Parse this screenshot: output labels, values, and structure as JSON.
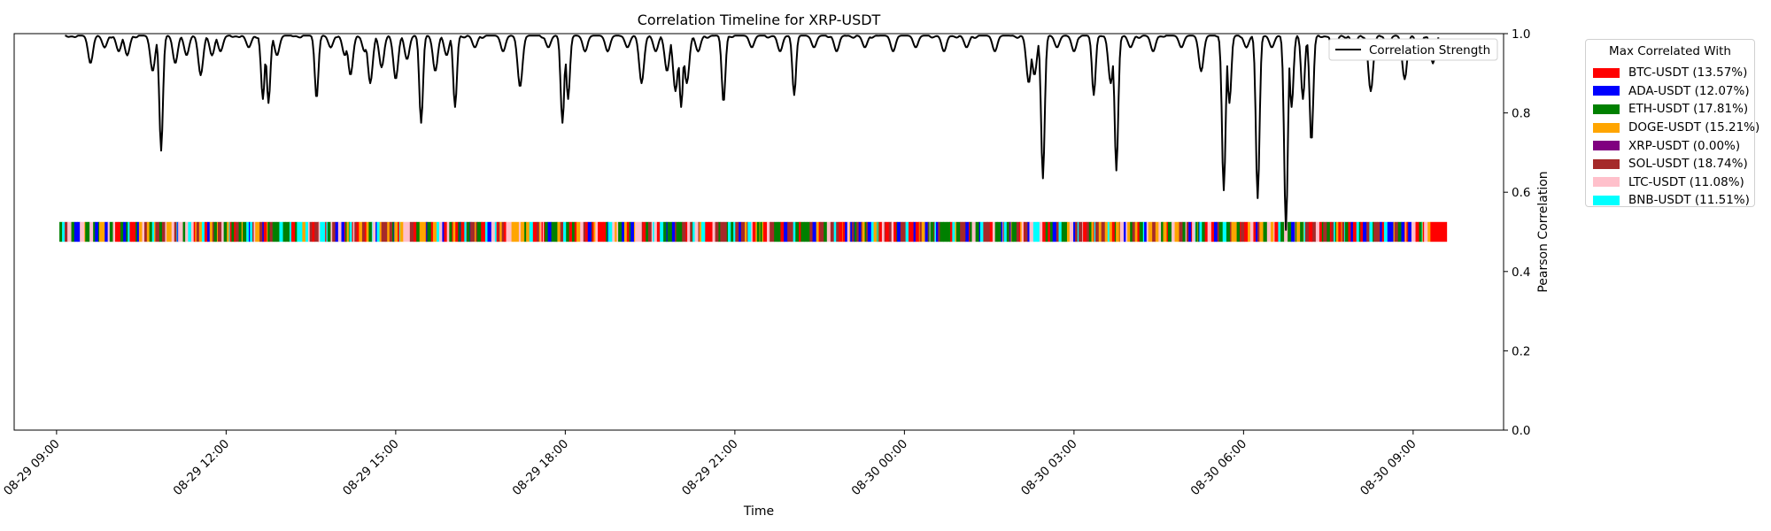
{
  "chart_data": {
    "type": "line",
    "title": "Correlation Timeline for XRP-USDT",
    "xlabel": "Time",
    "ylabel": "Pearson Correlation",
    "ylim": [
      0,
      1
    ],
    "yticks": [
      "0.0",
      "0.2",
      "0.4",
      "0.6",
      "0.8",
      "1.0"
    ],
    "xlim_hours": [
      -0.75,
      25.6
    ],
    "xticks": [
      "08-29 09:00",
      "08-29 12:00",
      "08-29 15:00",
      "08-29 18:00",
      "08-29 21:00",
      "08-30 00:00",
      "08-30 03:00",
      "08-30 06:00",
      "08-30 09:00"
    ],
    "grid": false,
    "series": [
      {
        "name": "Correlation Strength",
        "color": "#000000",
        "baseline": 0.995,
        "dips": [
          [
            0.6,
            0.93
          ],
          [
            0.85,
            0.97
          ],
          [
            1.1,
            0.96
          ],
          [
            1.25,
            0.95
          ],
          [
            1.7,
            0.91
          ],
          [
            1.85,
            0.71
          ],
          [
            2.1,
            0.93
          ],
          [
            2.3,
            0.95
          ],
          [
            2.55,
            0.9
          ],
          [
            2.75,
            0.95
          ],
          [
            2.9,
            0.96
          ],
          [
            3.4,
            0.97
          ],
          [
            3.65,
            0.84
          ],
          [
            3.75,
            0.83
          ],
          [
            3.9,
            0.95
          ],
          [
            4.6,
            0.84
          ],
          [
            4.85,
            0.97
          ],
          [
            5.1,
            0.95
          ],
          [
            5.2,
            0.9
          ],
          [
            5.45,
            0.96
          ],
          [
            5.55,
            0.88
          ],
          [
            5.75,
            0.92
          ],
          [
            6.0,
            0.89
          ],
          [
            6.2,
            0.94
          ],
          [
            6.45,
            0.78
          ],
          [
            6.7,
            0.91
          ],
          [
            6.9,
            0.95
          ],
          [
            7.05,
            0.82
          ],
          [
            7.4,
            0.97
          ],
          [
            7.9,
            0.96
          ],
          [
            8.2,
            0.87
          ],
          [
            8.7,
            0.97
          ],
          [
            8.95,
            0.78
          ],
          [
            9.05,
            0.84
          ],
          [
            9.35,
            0.96
          ],
          [
            9.75,
            0.96
          ],
          [
            10.1,
            0.97
          ],
          [
            10.35,
            0.88
          ],
          [
            10.6,
            0.96
          ],
          [
            10.8,
            0.91
          ],
          [
            10.95,
            0.86
          ],
          [
            11.05,
            0.82
          ],
          [
            11.15,
            0.88
          ],
          [
            11.35,
            0.96
          ],
          [
            11.8,
            0.83
          ],
          [
            12.3,
            0.97
          ],
          [
            12.8,
            0.96
          ],
          [
            13.05,
            0.85
          ],
          [
            13.4,
            0.97
          ],
          [
            13.8,
            0.96
          ],
          [
            14.3,
            0.97
          ],
          [
            14.8,
            0.96
          ],
          [
            15.2,
            0.97
          ],
          [
            15.7,
            0.96
          ],
          [
            16.1,
            0.97
          ],
          [
            16.6,
            0.96
          ],
          [
            17.2,
            0.88
          ],
          [
            17.3,
            0.9
          ],
          [
            17.45,
            0.64
          ],
          [
            17.7,
            0.97
          ],
          [
            18.0,
            0.96
          ],
          [
            18.35,
            0.85
          ],
          [
            18.65,
            0.88
          ],
          [
            18.75,
            0.66
          ],
          [
            19.0,
            0.97
          ],
          [
            19.4,
            0.96
          ],
          [
            19.9,
            0.97
          ],
          [
            20.25,
            0.91
          ],
          [
            20.65,
            0.61
          ],
          [
            20.75,
            0.83
          ],
          [
            21.05,
            0.97
          ],
          [
            21.25,
            0.59
          ],
          [
            21.5,
            0.97
          ],
          [
            21.75,
            0.51
          ],
          [
            21.85,
            0.82
          ],
          [
            22.05,
            0.84
          ],
          [
            22.2,
            0.73
          ],
          [
            22.6,
            0.95
          ],
          [
            22.95,
            0.97
          ],
          [
            23.25,
            0.86
          ],
          [
            23.55,
            0.97
          ],
          [
            23.85,
            0.89
          ],
          [
            24.1,
            0.95
          ],
          [
            24.35,
            0.93
          ]
        ]
      }
    ],
    "stripe": {
      "y": 0.5,
      "height": 0.05,
      "x_start_hours": 0.05,
      "x_end_hours": 24.6,
      "rule": "each time bin is coloured by the asset with maximum correlation"
    },
    "legend_title": "Max Correlated With",
    "legend_position": "outside-right",
    "line_legend_position": "upper-right",
    "categories": [
      {
        "label": "BTC-USDT (13.57%)",
        "color": "#ff0000",
        "share": 13.57
      },
      {
        "label": "ADA-USDT (12.07%)",
        "color": "#0000ff",
        "share": 12.07
      },
      {
        "label": "ETH-USDT (17.81%)",
        "color": "#008000",
        "share": 17.81
      },
      {
        "label": "DOGE-USDT (15.21%)",
        "color": "#ffa500",
        "share": 15.21
      },
      {
        "label": "XRP-USDT (0.00%)",
        "color": "#800080",
        "share": 0.0
      },
      {
        "label": "SOL-USDT (18.74%)",
        "color": "#a52a2a",
        "share": 18.74
      },
      {
        "label": "LTC-USDT (11.08%)",
        "color": "#ffc0cb",
        "share": 11.08
      },
      {
        "label": "BNB-USDT (11.51%)",
        "color": "#00ffff",
        "share": 11.51
      }
    ]
  }
}
